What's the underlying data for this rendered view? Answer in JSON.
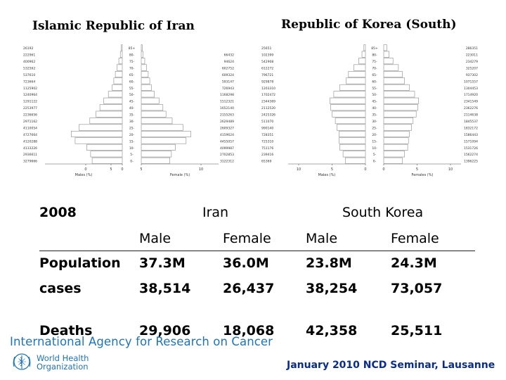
{
  "chart_data": [
    {
      "type": "bar",
      "title": "Islamic Republic of Iran",
      "age_groups": [
        "0-",
        "5-",
        "10-",
        "15-",
        "20-",
        "25-",
        "30-",
        "35-",
        "40-",
        "45-",
        "50-",
        "55-",
        "60-",
        "65-",
        "70-",
        "75-",
        "80-",
        "85+"
      ],
      "xticks": [
        "0",
        "5",
        "0",
        "5",
        "10"
      ],
      "xlabel_left": "Males (%)",
      "xlabel_right": "Female (%)",
      "series": [
        {
          "name": "Males",
          "values": [
            3.9,
            4.1,
            4.6,
            6.1,
            6.6,
            5.6,
            4.2,
            3.4,
            2.9,
            2.4,
            1.8,
            1.3,
            1.1,
            0.9,
            0.7,
            0.45,
            0.25,
            0.12
          ],
          "labels": [
            "3279666",
            "2936611",
            "4133226",
            "4120288",
            "4727664",
            "4110054",
            "2971162",
            "2236656",
            "2253977",
            "1291122",
            "1240964",
            "1125902",
            "723664",
            "537610",
            "532562",
            "400962",
            "222961",
            "26192"
          ]
        },
        {
          "name": "Female",
          "values": [
            3.7,
            3.9,
            4.4,
            5.8,
            6.4,
            5.4,
            4.0,
            3.2,
            2.8,
            2.3,
            1.7,
            1.3,
            1.1,
            0.9,
            0.7,
            0.45,
            0.25,
            0.12
          ],
          "labels": [
            "3122312",
            "2702853",
            "4099987",
            "4455057",
            "4159624",
            "2609327",
            "2629489",
            "2155263",
            "1652140",
            "1512321",
            "1168298",
            "726943",
            "593147",
            "609324",
            "602752",
            "94624",
            "66432",
            ""
          ]
        }
      ]
    },
    {
      "type": "bar",
      "title": "Republic of Korea (South)",
      "age_groups": [
        "0-",
        "5-",
        "10-",
        "15-",
        "20-",
        "25-",
        "30-",
        "35-",
        "40-",
        "45-",
        "50-",
        "55-",
        "60-",
        "65-",
        "70-",
        "75-",
        "80-",
        "85+"
      ],
      "xticks": [
        "10",
        "5",
        "0",
        "0",
        "5",
        "10"
      ],
      "xlabel_left": "Males (%)",
      "xlabel_right": "Females (%)",
      "series": [
        {
          "name": "Males",
          "values": [
            2.6,
            2.9,
            3.3,
            3.4,
            3.4,
            3.7,
            3.9,
            4.3,
            4.5,
            4.6,
            4.1,
            3.3,
            2.5,
            2.2,
            1.5,
            0.85,
            0.45,
            0.2
          ],
          "labels": [
            "65369",
            "239416",
            "751176",
            "725310",
            "728351",
            "990140",
            "511070",
            "2425326",
            "2112520",
            "2344369",
            "1702472",
            "1203310",
            "929878",
            "796721",
            "612272",
            "542908",
            "102399",
            "25651"
          ]
        },
        {
          "name": "Females",
          "values": [
            2.4,
            2.7,
            3.1,
            3.2,
            3.3,
            3.6,
            3.8,
            4.2,
            4.4,
            4.5,
            4.0,
            3.3,
            2.7,
            2.4,
            1.9,
            1.2,
            0.7,
            0.4
          ],
          "labels": [
            "1396225",
            "1562274",
            "1531726",
            "1571094",
            "1586443",
            "1832172",
            "1845537",
            "2114638",
            "2362276",
            "2341549",
            "1714920",
            "1304453",
            "1071557",
            "937302",
            "325207",
            "234279",
            "223011",
            "286351"
          ]
        }
      ]
    }
  ],
  "table": {
    "year": "2008",
    "countries": [
      "Iran",
      "South Korea"
    ],
    "subheaders": [
      "Male",
      "Female",
      "Male",
      "Female"
    ],
    "rows": [
      {
        "label": "Population",
        "values": [
          "37.3M",
          "36.0M",
          "23.8M",
          "24.3M"
        ]
      },
      {
        "label": "cases",
        "values": [
          "38,514",
          "26,437",
          "38,254",
          "73,057"
        ]
      },
      {
        "label": "Deaths",
        "values": [
          "29,906",
          "18,068",
          "42,358",
          "25,511"
        ]
      }
    ]
  },
  "branding": {
    "iarc": "International Agency for Research on Cancer",
    "who_line1": "World Health",
    "who_line2": "Organization",
    "who_icon": "who-emblem-icon"
  },
  "footer": "January 2010 NCD Seminar, Lausanne",
  "colors": {
    "iarc_blue": "#1f73b8",
    "footer_navy": "#0b2d8a"
  }
}
